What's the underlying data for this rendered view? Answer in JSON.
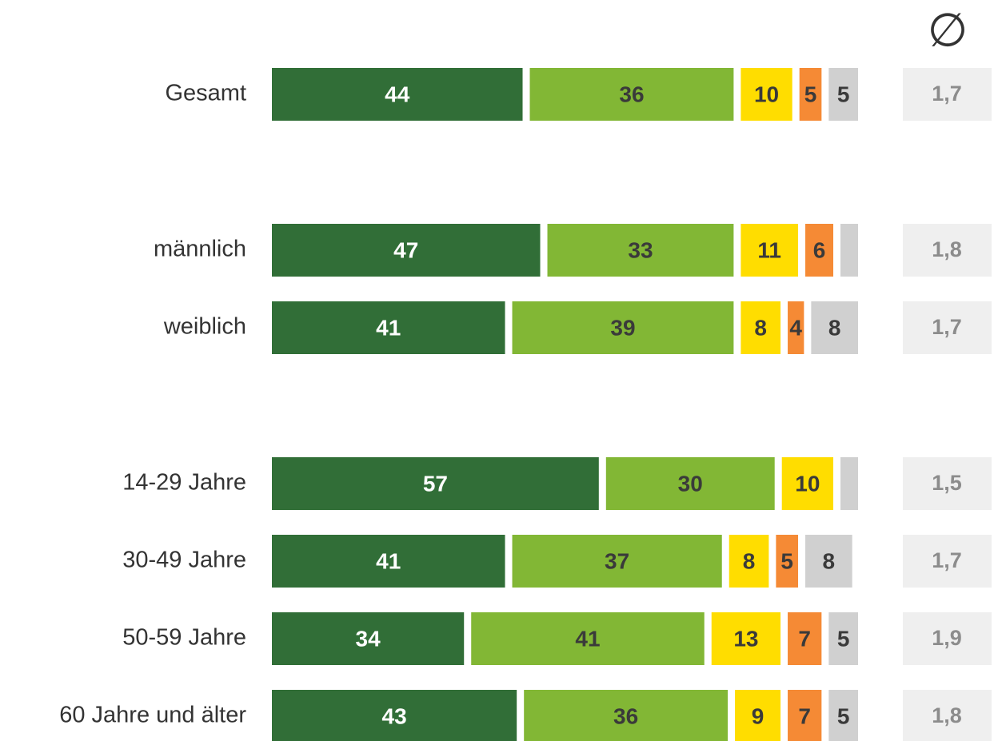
{
  "chart_data": {
    "type": "bar",
    "orientation": "horizontal",
    "stacked": true,
    "categories": [
      "Gesamt",
      "männlich",
      "weiblich",
      "14-29 Jahre",
      "30-49 Jahre",
      "50-59 Jahre",
      "60 Jahre und älter"
    ],
    "xlim": [
      0,
      100
    ],
    "series": [
      {
        "color": "#316e37",
        "label_color": "#ffffff",
        "values": [
          44,
          47,
          41,
          57,
          41,
          34,
          43
        ]
      },
      {
        "color": "#82b735",
        "label_color": "#3a3a3a",
        "values": [
          36,
          33,
          39,
          30,
          37,
          41,
          36
        ]
      },
      {
        "color": "#ffdd00",
        "label_color": "#3a3a3a",
        "values": [
          10,
          11,
          8,
          10,
          8,
          13,
          9
        ]
      },
      {
        "color": "#f58a35",
        "label_color": "#3a3a3a",
        "values": [
          5,
          6,
          4,
          null,
          5,
          7,
          7
        ]
      },
      {
        "color": "#d0d0d0",
        "label_color": "#3a3a3a",
        "values": [
          5,
          3,
          8,
          3,
          8,
          5,
          5
        ],
        "value_labels": [
          "5",
          null,
          "8",
          null,
          "8",
          "5",
          "5"
        ]
      }
    ],
    "averages_header": "∅",
    "averages": [
      "1,7",
      "1,8",
      "1,7",
      "1,5",
      "1,7",
      "1,9",
      "1,8"
    ]
  }
}
